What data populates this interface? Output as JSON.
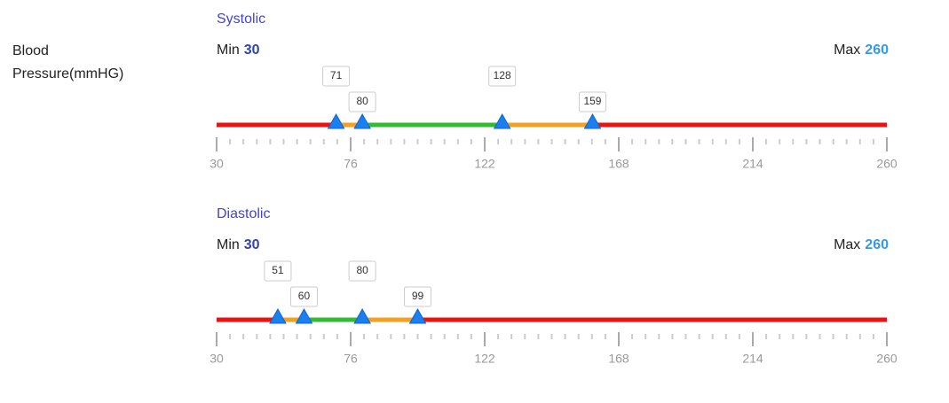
{
  "label": "Blood Pressure(mmHG)",
  "sliders": [
    {
      "title": "Systolic",
      "min_label": "Min",
      "min": 30,
      "max_label": "Max",
      "max": 260,
      "handles": [
        71,
        80,
        128,
        159
      ],
      "ticks": [
        30,
        76,
        122,
        168,
        214,
        260
      ],
      "zone_colors": [
        "#ee1111",
        "#f5a020",
        "#33bb33",
        "#f5a020",
        "#ee1111"
      ]
    },
    {
      "title": "Diastolic",
      "min_label": "Min",
      "min": 30,
      "max_label": "Max",
      "max": 260,
      "handles": [
        51,
        60,
        80,
        99
      ],
      "ticks": [
        30,
        76,
        122,
        168,
        214,
        260
      ],
      "zone_colors": [
        "#ee1111",
        "#f5a020",
        "#33bb33",
        "#f5a020",
        "#ee1111"
      ]
    }
  ]
}
